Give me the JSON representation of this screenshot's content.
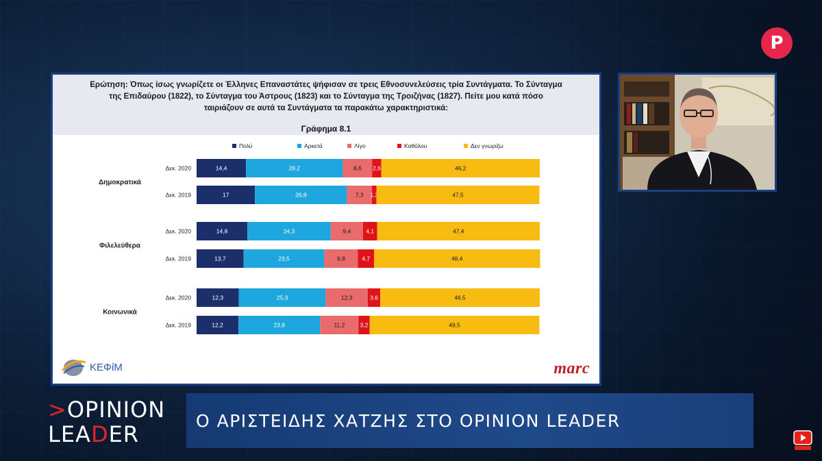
{
  "question": {
    "lines": [
      "Ερώτηση: Όπως ίσως γνωρίζετε οι Έλληνες Επαναστάτες ψήφισαν σε τρεις Εθνοσυνελεύσεις τρία Συντάγματα. Το Σύνταγμα",
      "της Επιδαύρου (1822), το Σύνταγμα του Άστρους (1823) και το Σύνταγμα της Τροιζήνας (1827). Πείτε μου κατά πόσο",
      "ταιριάζουν σε αυτά τα Συντάγματα τα παρακάτω χαρακτηριστικά:"
    ]
  },
  "chart_data": {
    "type": "bar",
    "orientation": "horizontal",
    "stacked": true,
    "title": "Γράφημα 8.1",
    "xlim": [
      0,
      100
    ],
    "grid": false,
    "legend_position": "top",
    "series": [
      {
        "name": "Πολύ",
        "color": "#1b2f6b"
      },
      {
        "name": "Αρκετά",
        "color": "#1ea6df"
      },
      {
        "name": "Λίγο",
        "color": "#ea6b6b"
      },
      {
        "name": "Καθόλου",
        "color": "#e0121a"
      },
      {
        "name": "Δεν γνωρίζω",
        "color": "#f7bb12"
      }
    ],
    "groups": [
      {
        "label": "Δημοκρατικά",
        "rows": [
          {
            "label": "Δεκ. 2020",
            "values": [
              14.4,
              28.2,
              8.6,
              2.6,
              46.2
            ]
          },
          {
            "label": "Δεκ. 2019",
            "values": [
              17,
              26.8,
              7.3,
              1.3,
              47.5
            ]
          }
        ]
      },
      {
        "label": "Φιλελεύθερα",
        "rows": [
          {
            "label": "Δεκ. 2020",
            "values": [
              14.8,
              24.3,
              9.4,
              4.1,
              47.4
            ]
          },
          {
            "label": "Δεκ. 2019",
            "values": [
              13.7,
              23.5,
              9.8,
              4.7,
              48.4
            ]
          }
        ]
      },
      {
        "label": "Κοινωνικά",
        "rows": [
          {
            "label": "Δεκ. 2020",
            "values": [
              12.3,
              25.3,
              12.3,
              3.6,
              46.5
            ]
          },
          {
            "label": "Δεκ. 2019",
            "values": [
              12.2,
              23.8,
              11.2,
              3.2,
              49.5
            ]
          }
        ]
      }
    ]
  },
  "logos": {
    "kefim": "ΚΕΦίΜ",
    "marc": "marc"
  },
  "channel": {
    "badge_letter": "P",
    "badge_color": "#e8254b"
  },
  "show_logo": {
    "line1_prefix": "",
    "line1_accent": ">",
    "line1_rest": "OPINION",
    "line2_a": "LEA",
    "line2_accent": "D",
    "line2_b": "ER"
  },
  "lower_third": {
    "text": "Ο ΑΡΙΣΤΕΙΔΗΣ ΧΑΤΖΗΣ ΣΤΟ OPINION LEADER"
  }
}
